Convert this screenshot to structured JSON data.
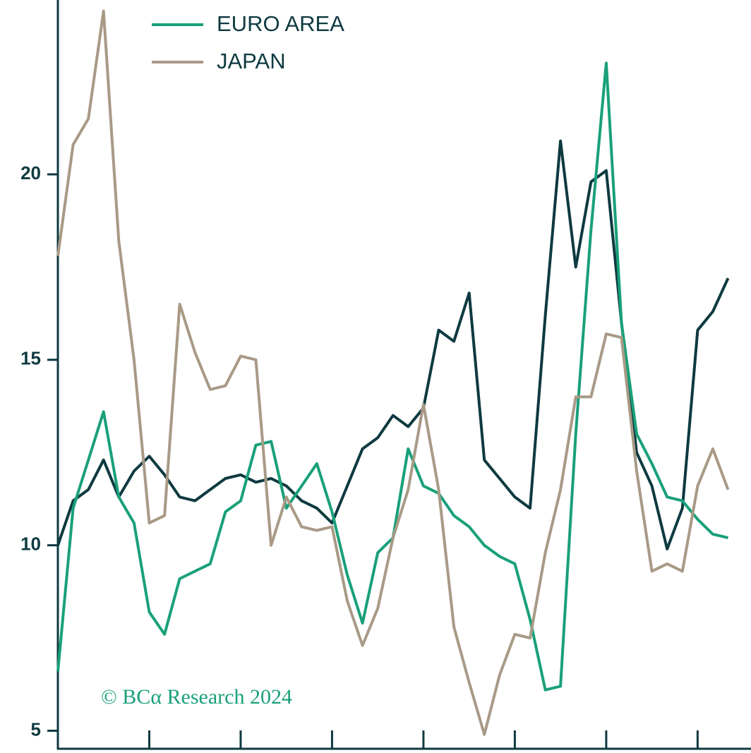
{
  "chart_data": {
    "type": "line",
    "categories": [
      null,
      null,
      null,
      null,
      null,
      null,
      null,
      null,
      null,
      null,
      null,
      null,
      null,
      null,
      null,
      null,
      null,
      null,
      null,
      null,
      null,
      null,
      null,
      null,
      null,
      null,
      null,
      null,
      null,
      null,
      null,
      null,
      null,
      null,
      null,
      null,
      null,
      null,
      null,
      null,
      null,
      null,
      null,
      null,
      null
    ],
    "series": [
      {
        "color": "#0e3a40",
        "values": [
          10.0,
          11.2,
          11.5,
          12.3,
          11.3,
          12.0,
          12.4,
          11.9,
          11.3,
          11.2,
          11.5,
          11.8,
          11.9,
          11.7,
          11.8,
          11.6,
          11.2,
          11.0,
          10.6,
          11.6,
          12.6,
          12.9,
          13.5,
          13.2,
          13.7,
          15.8,
          15.5,
          16.8,
          12.3,
          11.8,
          11.3,
          11.0,
          16.2,
          20.9,
          17.5,
          19.8,
          20.1,
          16.0,
          12.5,
          11.6,
          9.9,
          11.0,
          15.8,
          16.3,
          17.2
        ]
      },
      {
        "name": "EURO AREA",
        "color": "#19a07a",
        "values": [
          6.6,
          11.0,
          12.3,
          13.6,
          11.3,
          10.6,
          8.2,
          7.6,
          9.1,
          9.3,
          9.5,
          10.9,
          11.2,
          12.7,
          12.8,
          11.0,
          11.6,
          12.2,
          10.9,
          9.2,
          7.9,
          9.8,
          10.2,
          12.6,
          11.6,
          11.4,
          10.8,
          10.5,
          10.0,
          9.7,
          9.5,
          8.0,
          6.1,
          6.2,
          13.0,
          18.5,
          23.0,
          16.0,
          13.0,
          12.2,
          11.3,
          11.2,
          10.7,
          10.3,
          10.2
        ]
      },
      {
        "name": "JAPAN",
        "color": "#a89a86",
        "values": [
          17.8,
          20.8,
          21.5,
          24.4,
          18.2,
          15.0,
          10.6,
          10.8,
          16.5,
          15.2,
          14.2,
          14.3,
          15.1,
          15.0,
          10.0,
          11.3,
          10.5,
          10.4,
          10.5,
          8.5,
          7.3,
          8.3,
          10.2,
          11.5,
          13.8,
          11.5,
          7.8,
          6.3,
          4.9,
          6.5,
          7.6,
          7.5,
          9.8,
          11.5,
          14.0,
          14.0,
          15.7,
          15.6,
          12.0,
          9.3,
          9.5,
          9.3,
          11.6,
          12.6,
          11.5
        ]
      }
    ],
    "ylim": [
      4.4,
      24.7
    ],
    "yticks": [
      5,
      10,
      15,
      20
    ],
    "legend": "upper left",
    "watermark": "© BCα Research 2024"
  }
}
